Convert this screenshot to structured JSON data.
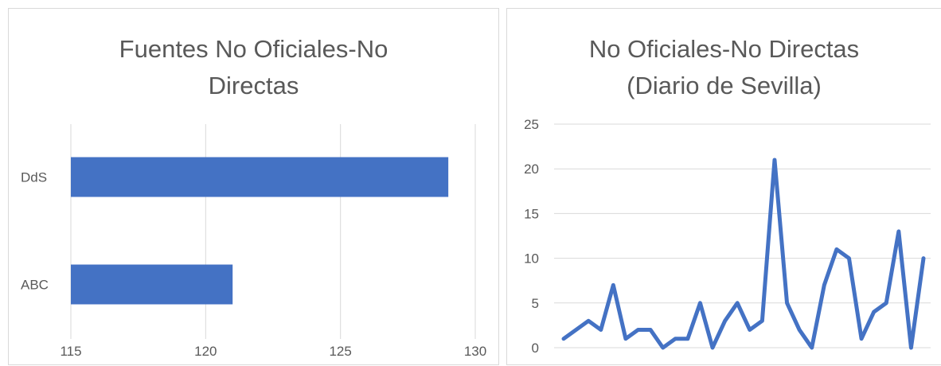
{
  "chart_data": [
    {
      "type": "bar",
      "orientation": "horizontal",
      "title_lines": [
        "Fuentes No Oficiales-No",
        "Directas"
      ],
      "categories": [
        "DdS",
        "ABC"
      ],
      "values": [
        129,
        121
      ],
      "xlim": [
        115,
        130
      ],
      "xticks": [
        "115",
        "120",
        "125",
        "130"
      ],
      "color": "#4472c4",
      "grid": true
    },
    {
      "type": "line",
      "title_lines": [
        "No Oficiales-No Directas",
        "(Diario de Sevilla)"
      ],
      "values": [
        1,
        2,
        3,
        2,
        7,
        1,
        2,
        2,
        0,
        1,
        1,
        5,
        0,
        3,
        5,
        2,
        3,
        21,
        5,
        2,
        0,
        7,
        11,
        10,
        1,
        4,
        5,
        13,
        0,
        10
      ],
      "ylim": [
        0,
        25
      ],
      "yticks": [
        "0",
        "5",
        "10",
        "15",
        "20",
        "25"
      ],
      "color": "#4472c4",
      "grid": true
    }
  ]
}
